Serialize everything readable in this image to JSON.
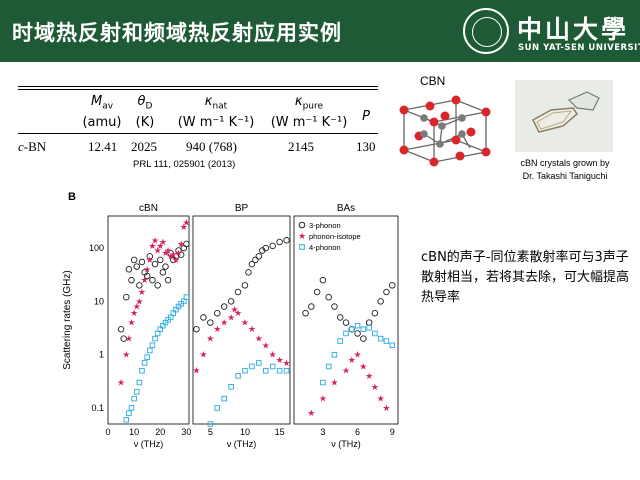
{
  "header": {
    "title": "时域热反射和频域热反射应用实例",
    "logo_cn": "中山大學",
    "logo_en": "SUN YAT-SEN UNIVERSITY",
    "bg_color": "#1f5a36"
  },
  "table": {
    "headers": [
      {
        "sym": "M",
        "sub": "av",
        "unit": "(amu)"
      },
      {
        "sym": "θ",
        "sub": "D",
        "unit": "(K)"
      },
      {
        "sym": "κ",
        "sub": "nat",
        "unit": "(W m⁻¹ K⁻¹)"
      },
      {
        "sym": "κ",
        "sub": "pure",
        "unit": "(W m⁻¹ K⁻¹)"
      },
      {
        "sym": "P",
        "sub": "",
        "unit": ""
      }
    ],
    "row": {
      "material_prefix": "c",
      "material": "-BN",
      "m_av": "12.41",
      "theta_d": "2025",
      "k_nat": "940 (768)",
      "k_pure": "2145",
      "p": "130"
    },
    "reference": "PRL 111, 025901 (2013)"
  },
  "structure": {
    "title": "CBN"
  },
  "photo": {
    "caption_line1": "cBN crystals grown by",
    "caption_line2": "Dr. Takashi Taniguchi"
  },
  "note": {
    "text": "cBN的声子-同位素散射率可与3声子散射相当，若将其去除，可大幅提高热导率"
  },
  "chart_data": {
    "type": "scatter",
    "figure_label": "B",
    "ylabel": "Scattering rates (GHz)",
    "yscale": "log",
    "ylim": [
      0.05,
      400
    ],
    "y_ticks": [
      "0.1",
      "1",
      "10",
      "100"
    ],
    "legend": {
      "placement": "top-right (BAs panel)",
      "entries": [
        "3-phonon",
        "phonon-isotope",
        "4-phonon"
      ]
    },
    "series_colors": {
      "3-phonon": "#222222",
      "phonon-isotope": "#d6245a",
      "4-phonon": "#2aa8e0"
    },
    "panels": [
      {
        "title": "cBN",
        "xlabel": "ν (THz)",
        "xlim": [
          0,
          31
        ],
        "x_ticks": [
          "0",
          "10",
          "20",
          "30"
        ],
        "series": [
          {
            "name": "3-phonon",
            "points": [
              [
                5,
                3
              ],
              [
                6,
                2
              ],
              [
                7,
                12
              ],
              [
                8,
                40
              ],
              [
                9,
                25
              ],
              [
                10,
                60
              ],
              [
                11,
                45
              ],
              [
                12,
                20
              ],
              [
                13,
                55
              ],
              [
                14,
                35
              ],
              [
                15,
                30
              ],
              [
                16,
                70
              ],
              [
                17,
                25
              ],
              [
                18,
                50
              ],
              [
                19,
                20
              ],
              [
                20,
                60
              ],
              [
                21,
                35
              ],
              [
                22,
                45
              ],
              [
                23,
                25
              ],
              [
                24,
                80
              ],
              [
                25,
                60
              ],
              [
                26,
                70
              ],
              [
                27,
                90
              ],
              [
                28,
                75
              ],
              [
                29,
                100
              ],
              [
                30,
                120
              ]
            ]
          },
          {
            "name": "phonon-isotope",
            "points": [
              [
                5,
                0.3
              ],
              [
                7,
                1
              ],
              [
                8,
                2
              ],
              [
                9,
                4
              ],
              [
                10,
                6
              ],
              [
                11,
                8
              ],
              [
                12,
                10
              ],
              [
                13,
                15
              ],
              [
                14,
                25
              ],
              [
                15,
                40
              ],
              [
                16,
                60
              ],
              [
                17,
                110
              ],
              [
                18,
                140
              ],
              [
                19,
                90
              ],
              [
                20,
                110
              ],
              [
                21,
                130
              ],
              [
                22,
                80
              ],
              [
                23,
                90
              ],
              [
                24,
                70
              ],
              [
                25,
                75
              ],
              [
                26,
                60
              ],
              [
                27,
                80
              ],
              [
                28,
                120
              ],
              [
                29,
                250
              ],
              [
                30,
                300
              ]
            ]
          },
          {
            "name": "4-phonon",
            "points": [
              [
                7,
                0.06
              ],
              [
                8,
                0.08
              ],
              [
                9,
                0.1
              ],
              [
                10,
                0.15
              ],
              [
                11,
                0.2
              ],
              [
                12,
                0.3
              ],
              [
                13,
                0.5
              ],
              [
                14,
                0.7
              ],
              [
                15,
                0.9
              ],
              [
                16,
                1.2
              ],
              [
                17,
                1.5
              ],
              [
                18,
                2
              ],
              [
                19,
                2.5
              ],
              [
                20,
                3
              ],
              [
                21,
                3.5
              ],
              [
                22,
                4
              ],
              [
                23,
                4.5
              ],
              [
                24,
                5
              ],
              [
                25,
                6
              ],
              [
                26,
                7
              ],
              [
                27,
                8
              ],
              [
                28,
                9
              ],
              [
                29,
                10
              ],
              [
                30,
                12
              ]
            ]
          }
        ]
      },
      {
        "title": "BP",
        "xlabel": "ν (THz)",
        "xlim": [
          2.5,
          16.5
        ],
        "x_ticks": [
          "5",
          "10",
          "15"
        ],
        "series": [
          {
            "name": "3-phonon",
            "points": [
              [
                3,
                3
              ],
              [
                4,
                5
              ],
              [
                5,
                4
              ],
              [
                6,
                6
              ],
              [
                7,
                8
              ],
              [
                8,
                10
              ],
              [
                9,
                15
              ],
              [
                10,
                20
              ],
              [
                10.5,
                35
              ],
              [
                11,
                50
              ],
              [
                11.5,
                60
              ],
              [
                12,
                70
              ],
              [
                12.5,
                90
              ],
              [
                13,
                100
              ],
              [
                14,
                110
              ],
              [
                15,
                130
              ],
              [
                16,
                140
              ]
            ]
          },
          {
            "name": "phonon-isotope",
            "points": [
              [
                3,
                0.5
              ],
              [
                4,
                1
              ],
              [
                5,
                2
              ],
              [
                6,
                3
              ],
              [
                7,
                4
              ],
              [
                8,
                5
              ],
              [
                8.5,
                7
              ],
              [
                9,
                6
              ],
              [
                10,
                4
              ],
              [
                11,
                3
              ],
              [
                12,
                2
              ],
              [
                13,
                1.5
              ],
              [
                14,
                1
              ],
              [
                15,
                0.8
              ],
              [
                16,
                0.7
              ]
            ]
          },
          {
            "name": "4-phonon",
            "points": [
              [
                5,
                0.05
              ],
              [
                6,
                0.1
              ],
              [
                7,
                0.15
              ],
              [
                8,
                0.25
              ],
              [
                9,
                0.4
              ],
              [
                10,
                0.5
              ],
              [
                11,
                0.6
              ],
              [
                12,
                0.7
              ],
              [
                13,
                0.5
              ],
              [
                14,
                0.6
              ],
              [
                15,
                0.5
              ],
              [
                16,
                0.5
              ]
            ]
          }
        ]
      },
      {
        "title": "BAs",
        "xlabel": "ν (THz)",
        "xlim": [
          0.5,
          9.5
        ],
        "x_ticks": [
          "3",
          "6",
          "9"
        ],
        "series": [
          {
            "name": "3-phonon",
            "points": [
              [
                1.5,
                6
              ],
              [
                2,
                8
              ],
              [
                2.5,
                15
              ],
              [
                3,
                25
              ],
              [
                3.5,
                12
              ],
              [
                4,
                8
              ],
              [
                4.5,
                5
              ],
              [
                5,
                4
              ],
              [
                5.5,
                3
              ],
              [
                6,
                2.5
              ],
              [
                6.5,
                2
              ],
              [
                7,
                4
              ],
              [
                7.5,
                6
              ],
              [
                8,
                10
              ],
              [
                8.5,
                15
              ],
              [
                9,
                20
              ]
            ]
          },
          {
            "name": "phonon-isotope",
            "points": [
              [
                2,
                0.08
              ],
              [
                3,
                0.15
              ],
              [
                4,
                0.3
              ],
              [
                5,
                0.5
              ],
              [
                5.5,
                0.8
              ],
              [
                6,
                1
              ],
              [
                6.5,
                0.6
              ],
              [
                7,
                0.4
              ],
              [
                7.5,
                0.25
              ],
              [
                8,
                0.15
              ],
              [
                8.5,
                0.1
              ]
            ]
          },
          {
            "name": "4-phonon",
            "points": [
              [
                3,
                0.3
              ],
              [
                3.5,
                0.6
              ],
              [
                4,
                1
              ],
              [
                4.5,
                1.8
              ],
              [
                5,
                2.5
              ],
              [
                5.5,
                3
              ],
              [
                6,
                3.5
              ],
              [
                6.5,
                3
              ],
              [
                7,
                3.2
              ],
              [
                7.5,
                2.5
              ],
              [
                8,
                2
              ],
              [
                8.5,
                1.8
              ],
              [
                9,
                1.5
              ]
            ]
          }
        ]
      }
    ]
  }
}
